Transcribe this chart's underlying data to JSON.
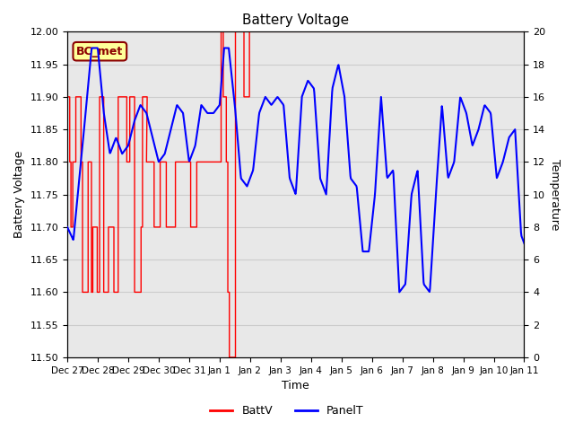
{
  "title": "Battery Voltage",
  "xlabel": "Time",
  "ylabel_left": "Battery Voltage",
  "ylabel_right": "Temperature",
  "ylim_left": [
    11.5,
    12.0
  ],
  "ylim_right": [
    0,
    20
  ],
  "yticks_left": [
    11.5,
    11.55,
    11.6,
    11.65,
    11.7,
    11.75,
    11.8,
    11.85,
    11.9,
    11.95,
    12.0
  ],
  "yticks_right": [
    0,
    2,
    4,
    6,
    8,
    10,
    12,
    14,
    16,
    18,
    20
  ],
  "xtick_labels": [
    "Dec 27",
    "Dec 28",
    "Dec 29",
    "Dec 30",
    "Dec 31",
    "Jan 1",
    "Jan 2",
    "Jan 3",
    "Jan 4",
    "Jan 5",
    "Jan 6",
    "Jan 7",
    "Jan 8",
    "Jan 9",
    "Jan 10",
    "Jan 11"
  ],
  "annotation_text": "BC_met",
  "annotation_color": "#8B0000",
  "annotation_bg": "#FFFF99",
  "grid_color": "#CCCCCC",
  "plot_bg": "#E8E8E8",
  "line_color_red": "#FF0000",
  "line_color_blue": "#0000FF",
  "legend_labels": [
    "BattV",
    "PanelT"
  ],
  "panel_kp_x": [
    0.0,
    0.2,
    0.5,
    0.8,
    1.0,
    1.2,
    1.4,
    1.6,
    1.8,
    2.0,
    2.2,
    2.4,
    2.6,
    2.8,
    3.0,
    3.2,
    3.4,
    3.6,
    3.8,
    4.0,
    4.2,
    4.4,
    4.6,
    4.8,
    5.0,
    5.15,
    5.3,
    5.5,
    5.7,
    5.9,
    6.1,
    6.3,
    6.5,
    6.7,
    6.9,
    7.1,
    7.3,
    7.5,
    7.7,
    7.9,
    8.1,
    8.3,
    8.5,
    8.7,
    8.9,
    9.1,
    9.3,
    9.5,
    9.7,
    9.9,
    10.1,
    10.3,
    10.5,
    10.7,
    10.9,
    11.1,
    11.3,
    11.5,
    11.7,
    11.9,
    12.1,
    12.3,
    12.5,
    12.7,
    12.9,
    13.1,
    13.3,
    13.5,
    13.7,
    13.9,
    14.1,
    14.3,
    14.5,
    14.7,
    14.9,
    15.0
  ],
  "panel_kp_y": [
    8.0,
    7.2,
    13.0,
    19.0,
    19.0,
    15.0,
    12.5,
    13.5,
    12.5,
    13.0,
    14.5,
    15.5,
    15.0,
    13.5,
    12.0,
    12.5,
    14.0,
    15.5,
    15.0,
    12.0,
    13.0,
    15.5,
    15.0,
    15.0,
    15.5,
    19.0,
    19.0,
    15.5,
    11.0,
    10.5,
    11.5,
    15.0,
    16.0,
    15.5,
    16.0,
    15.5,
    11.0,
    10.0,
    16.0,
    17.0,
    16.5,
    11.0,
    10.0,
    16.5,
    18.0,
    16.0,
    11.0,
    10.5,
    6.5,
    6.5,
    10.0,
    16.0,
    11.0,
    11.5,
    4.0,
    4.5,
    10.0,
    11.5,
    4.5,
    4.0,
    10.0,
    15.5,
    11.0,
    12.0,
    16.0,
    15.0,
    13.0,
    14.0,
    15.5,
    15.0,
    11.0,
    12.0,
    13.5,
    14.0,
    7.5,
    7.0
  ]
}
